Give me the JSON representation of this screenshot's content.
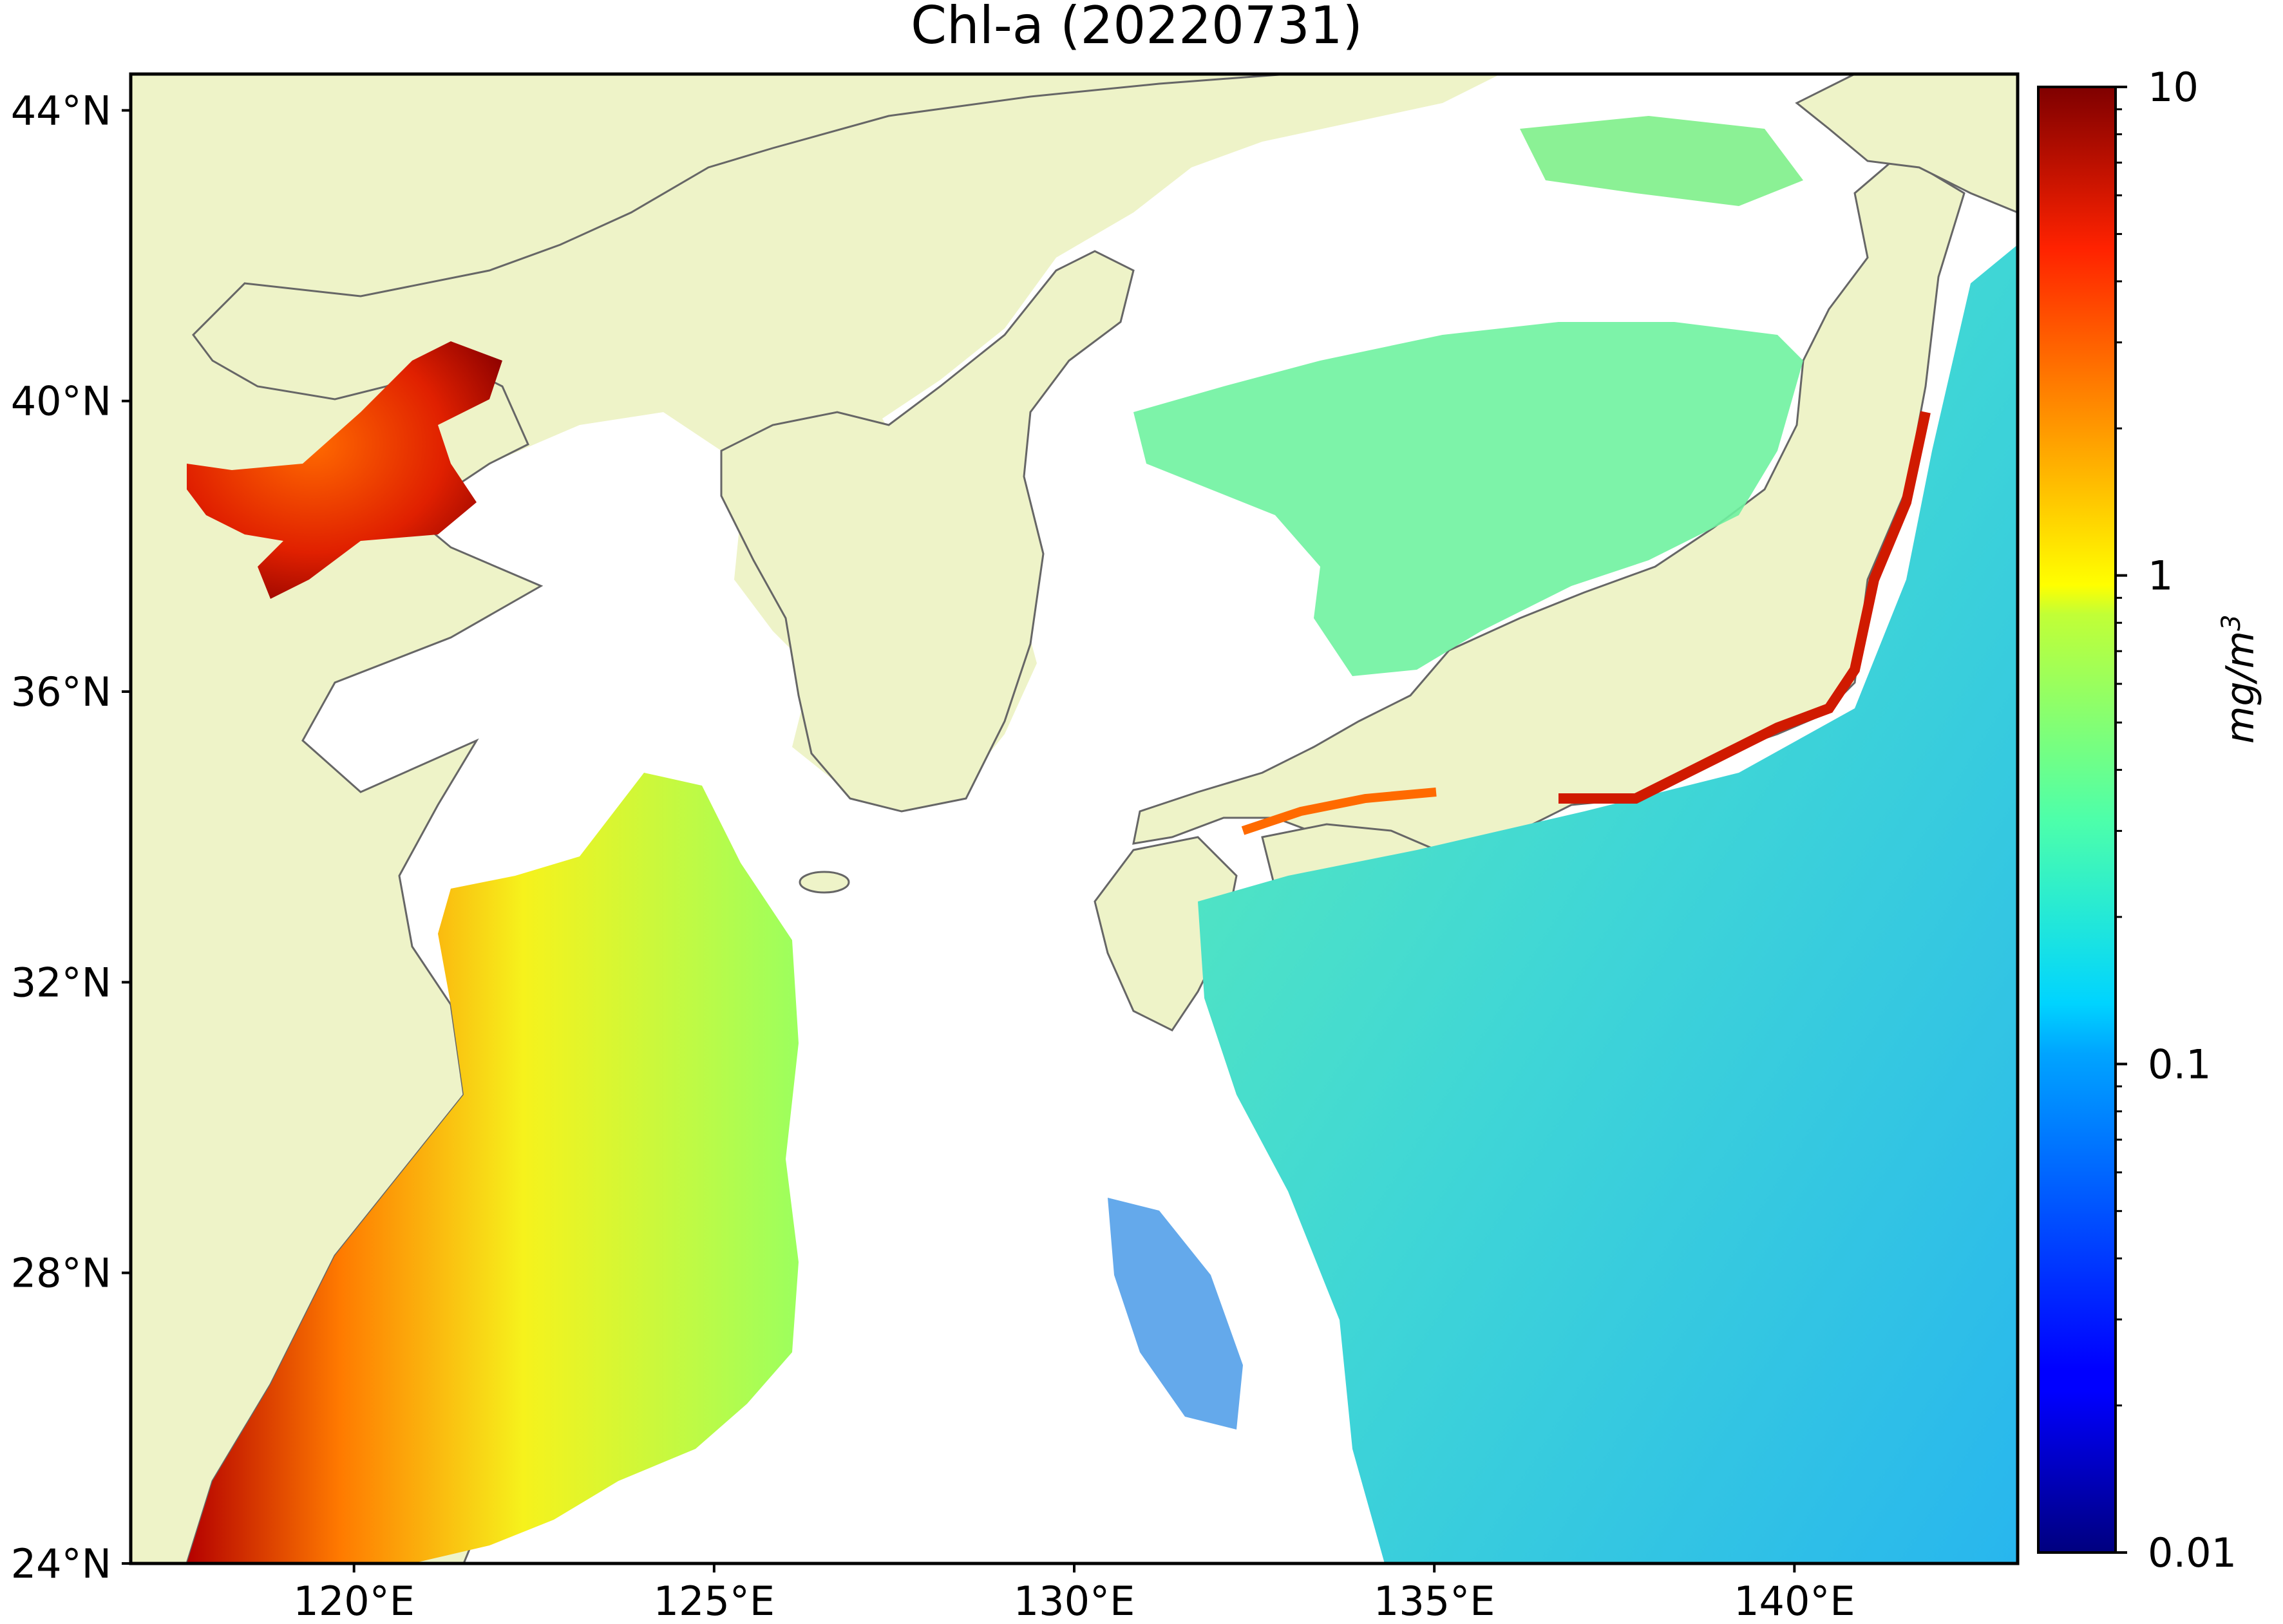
{
  "title": "Chl-a (20220731)",
  "map": {
    "x_ticks": [
      {
        "label": "120°E",
        "lon": 120
      },
      {
        "label": "125°E",
        "lon": 125
      },
      {
        "label": "130°E",
        "lon": 130
      },
      {
        "label": "135°E",
        "lon": 135
      },
      {
        "label": "140°E",
        "lon": 140
      }
    ],
    "y_ticks": [
      {
        "label": "44°N",
        "lat": 44
      },
      {
        "label": "40°N",
        "lat": 40
      },
      {
        "label": "36°N",
        "lat": 36
      },
      {
        "label": "32°N",
        "lat": 32
      },
      {
        "label": "28°N",
        "lat": 28
      },
      {
        "label": "24°N",
        "lat": 24
      }
    ],
    "lon_range": [
      116.9,
      143.1
    ],
    "lat_range": [
      24.0,
      44.5
    ],
    "land_color": "#eef3c8",
    "coast_color": "#666666",
    "no_data_color": "#ffffff"
  },
  "colorbar": {
    "ticks": [
      {
        "label": "10",
        "value": 10
      },
      {
        "label": "1",
        "value": 1
      },
      {
        "label": "0.1",
        "value": 0.1
      },
      {
        "label": "0.01",
        "value": 0.01
      }
    ],
    "scale": "log",
    "range": [
      0.01,
      10
    ],
    "colormap": "jet",
    "unit_main": "mg/m",
    "unit_sup": "3"
  }
}
